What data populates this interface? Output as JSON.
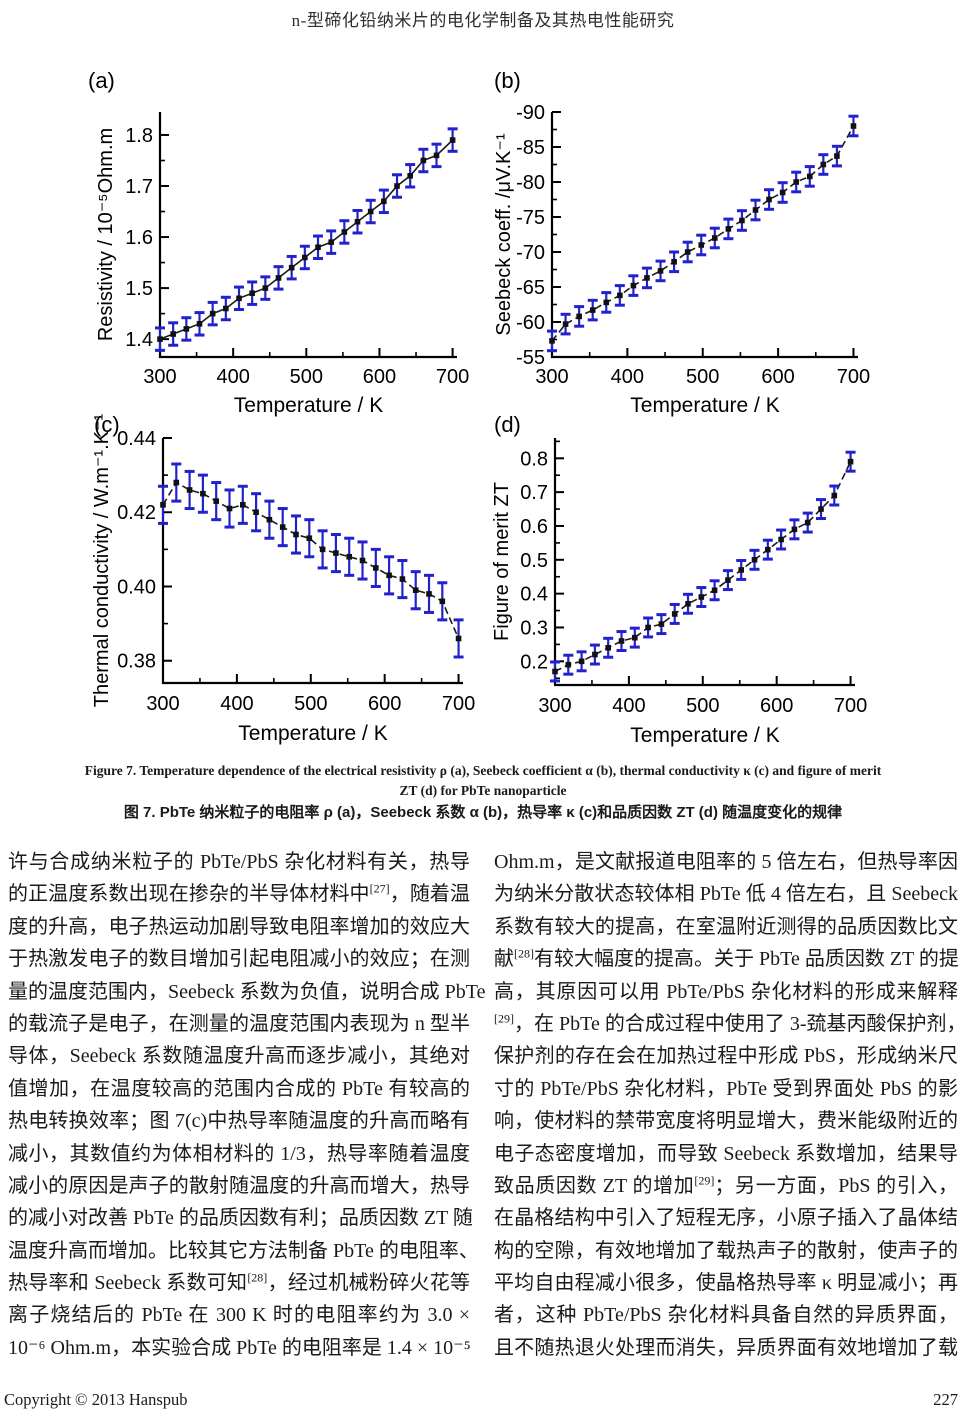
{
  "header": {
    "title": "n-型碲化铅纳米片的电化学制备及其热电性能研究"
  },
  "figure": {
    "caption_en_line1": "Figure 7. Temperature dependence of the electrical resistivity ρ (a), Seebeck coefficient α (b), thermal conductivity κ (c) and figure of merit",
    "caption_en_line2": "ZT (d) for PbTe nanoparticle",
    "caption_zh": "图 7. PbTe 纳米粒子的电阻率 ρ (a)，Seebeck 系数 α (b)，热导率 κ (c)和品质因数 ZT (d) 随温度变化的规律"
  },
  "colors": {
    "error_bar": "#2222cc",
    "marker": "#111111",
    "line": "#1a1a1a",
    "axis": "#000000"
  },
  "chart_data": [
    {
      "id": "a",
      "panel_label": "(a)",
      "type": "line",
      "xlabel": "Temperature / K",
      "ylabel": "Resistivity / 10⁻⁵Ohm.m",
      "x": [
        300,
        318,
        336,
        354,
        372,
        390,
        408,
        426,
        444,
        462,
        480,
        498,
        516,
        534,
        552,
        570,
        588,
        606,
        624,
        642,
        660,
        678,
        700
      ],
      "y": [
        1.4,
        1.41,
        1.42,
        1.43,
        1.45,
        1.46,
        1.48,
        1.49,
        1.5,
        1.52,
        1.54,
        1.56,
        1.58,
        1.59,
        1.61,
        1.63,
        1.65,
        1.67,
        1.7,
        1.72,
        1.75,
        1.76,
        1.79
      ],
      "yerr": 0.022,
      "xlim": [
        300,
        706
      ],
      "ylim": [
        1.365,
        1.845
      ],
      "xticks": [
        300,
        400,
        500,
        600,
        700
      ],
      "yticks": [
        1.4,
        1.5,
        1.6,
        1.7,
        1.8
      ],
      "ytick_labels": [
        "1.4",
        "1.5",
        "1.6",
        "1.7",
        "1.8"
      ],
      "line_style": "solid",
      "marker": "square",
      "grid": false,
      "legend": "none"
    },
    {
      "id": "b",
      "panel_label": "(b)",
      "type": "line",
      "xlabel": "Temperature / K",
      "ylabel": "Seebeck coeff. /μV.K⁻¹",
      "x": [
        300,
        318,
        336,
        354,
        372,
        390,
        408,
        426,
        444,
        462,
        480,
        498,
        516,
        534,
        552,
        570,
        588,
        606,
        624,
        642,
        660,
        678,
        700
      ],
      "y": [
        -57.3,
        -59.7,
        -60.8,
        -61.7,
        -62.8,
        -63.8,
        -65.2,
        -66.3,
        -67.3,
        -68.6,
        -70.0,
        -71.0,
        -72.0,
        -73.3,
        -74.5,
        -76.0,
        -77.5,
        -78.5,
        -80.0,
        -80.8,
        -82.5,
        -83.7,
        -88.0
      ],
      "yerr": 1.4,
      "xlim": [
        300,
        706
      ],
      "ylim": [
        -55,
        -90
      ],
      "xticks": [
        300,
        400,
        500,
        600,
        700
      ],
      "yticks": [
        -90,
        -85,
        -80,
        -75,
        -70,
        -65,
        -60,
        -55
      ],
      "ytick_labels": [
        "-90",
        "-85",
        "-80",
        "-75",
        "-70",
        "-65",
        "-60",
        "-55"
      ],
      "line_style": "dashed",
      "marker": "square",
      "grid": false,
      "legend": "none"
    },
    {
      "id": "c",
      "panel_label": "(c)",
      "type": "line",
      "xlabel": "Temperature / K",
      "ylabel": "Thermal conductivity / W.m⁻¹.K⁻¹",
      "x": [
        300,
        318,
        336,
        354,
        372,
        390,
        408,
        426,
        444,
        462,
        480,
        498,
        516,
        534,
        552,
        570,
        588,
        606,
        624,
        642,
        660,
        678,
        700
      ],
      "y": [
        0.422,
        0.428,
        0.426,
        0.425,
        0.423,
        0.421,
        0.422,
        0.42,
        0.418,
        0.416,
        0.414,
        0.413,
        0.41,
        0.409,
        0.408,
        0.407,
        0.405,
        0.403,
        0.402,
        0.399,
        0.398,
        0.396,
        0.386
      ],
      "yerr": 0.005,
      "xlim": [
        300,
        706
      ],
      "ylim": [
        0.374,
        0.44
      ],
      "xticks": [
        300,
        400,
        500,
        600,
        700
      ],
      "yticks": [
        0.38,
        0.4,
        0.42,
        0.44
      ],
      "ytick_labels": [
        "0.38",
        "0.40",
        "0.42",
        "0.44"
      ],
      "line_style": "dashed",
      "marker": "square",
      "grid": false,
      "legend": "none"
    },
    {
      "id": "d",
      "panel_label": "(d)",
      "type": "line",
      "xlabel": "Temperature / K",
      "ylabel": "Figure of merit ZT",
      "x": [
        300,
        318,
        336,
        354,
        372,
        390,
        408,
        426,
        444,
        462,
        480,
        498,
        516,
        534,
        552,
        570,
        588,
        606,
        624,
        642,
        660,
        678,
        700
      ],
      "y": [
        0.17,
        0.19,
        0.2,
        0.22,
        0.24,
        0.26,
        0.27,
        0.3,
        0.31,
        0.34,
        0.37,
        0.39,
        0.41,
        0.44,
        0.47,
        0.5,
        0.53,
        0.56,
        0.59,
        0.61,
        0.65,
        0.69,
        0.79
      ],
      "yerr": 0.028,
      "xlim": [
        300,
        706
      ],
      "ylim": [
        0.13,
        0.86
      ],
      "xticks": [
        300,
        400,
        500,
        600,
        700
      ],
      "yticks": [
        0.2,
        0.3,
        0.4,
        0.5,
        0.6,
        0.7,
        0.8
      ],
      "ytick_labels": [
        "0.2",
        "0.3",
        "0.4",
        "0.5",
        "0.6",
        "0.7",
        "0.8"
      ],
      "line_style": "dashed",
      "marker": "square",
      "grid": false,
      "legend": "none"
    }
  ],
  "body": {
    "left_column_lines": [
      "许与合成纳米粒子的 PbTe/PbS 杂化材料有关，热导",
      "的正温度系数出现在掺杂的半导体材料中[27]，随着温",
      "度的升高，电子热运动加剧导致电阻率增加的效应大",
      "于热激发电子的数目增加引起电阻减小的效应；在测",
      "量的温度范围内，Seebeck 系数为负值，说明合成 PbTe",
      "的载流子是电子，在测量的温度范围内表现为 n 型半",
      "导体，Seebeck 系数随温度升高而逐步减小，其绝对",
      "值增加，在温度较高的范围内合成的 PbTe 有较高的",
      "热电转换效率；图 7(c)中热导率随温度的升高而略有",
      "减小，其数值约为体相材料的 1/3，热导率随着温度",
      "减小的原因是声子的散射随温度的升高而增大，热导",
      "的减小对改善 PbTe 的品质因数有利；品质因数 ZT 随",
      "温度升高而增加。比较其它方法制备 PbTe 的电阻率、",
      "热导率和 Seebeck 系数可知[28]，经过机械粉碎火花等",
      "离子烧结后的 PbTe 在 300 K 时的电阻率约为 3.0 ×",
      "10⁻⁶ Ohm.m，本实验合成 PbTe 的电阻率是 1.4 × 10⁻⁵"
    ],
    "right_column_lines": [
      "Ohm.m，是文献报道电阻率的 5 倍左右，但热导率因",
      "为纳米分散状态较体相 PbTe 低 4 倍左右，且 Seebeck",
      "系数有较大的提高，在室温附近测得的品质因数比文",
      "献[28]有较大幅度的提高。关于 PbTe 品质因数 ZT 的提",
      "高，其原因可以用 PbTe/PbS 杂化材料的形成来解释",
      "[29]，在 PbTe 的合成过程中使用了 3-巯基丙酸保护剂，",
      "保护剂的存在会在加热过程中形成 PbS，形成纳米尺",
      "寸的 PbTe/PbS 杂化材料，PbTe 受到界面处 PbS 的影",
      "响，使材料的禁带宽度将明显增大，费米能级附近的",
      "电子态密度增加，而导致 Seebeck 系数增加，结果导",
      "致品质因数 ZT 的增加[29]；另一方面，PbS 的引入，",
      "在晶格结构中引入了短程无序，小原子插入了晶体结",
      "构的空隙，有效地增加了载热声子的散射，使声子的",
      "平均自由程减小很多，使晶格热导率 κ 明显减小；再",
      "者，这种 PbTe/PbS 杂化材料具备自然的异质界面，",
      "且不随热退火处理而消失，异质界面有效地增加了载"
    ]
  },
  "footer": {
    "copyright": "Copyright © 2013 Hanspub",
    "page_number": "227"
  }
}
